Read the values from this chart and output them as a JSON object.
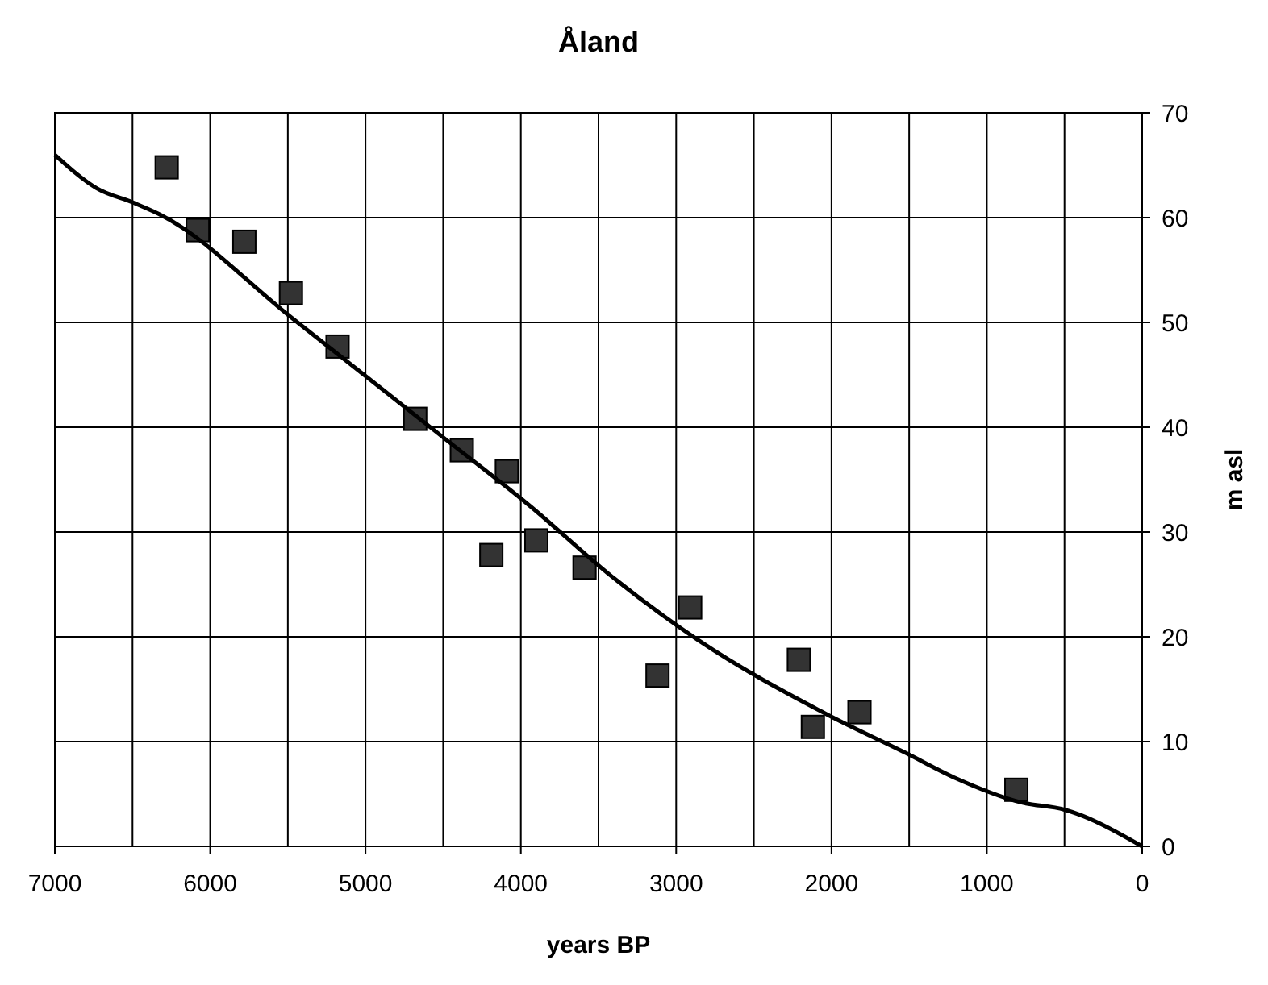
{
  "chart_data": {
    "type": "scatter",
    "title": "Åland",
    "xlabel": "years BP",
    "ylabel": "m asl",
    "xlim": [
      7000,
      0
    ],
    "ylim": [
      0,
      70
    ],
    "xticks": [
      7000,
      6000,
      5000,
      4000,
      3000,
      2000,
      1000,
      0
    ],
    "yticks": [
      0,
      10,
      20,
      30,
      40,
      50,
      60,
      70
    ],
    "grid": true,
    "series": [
      {
        "marker": "square",
        "color": "#333333",
        "x": [
          6280,
          6080,
          5780,
          5480,
          5180,
          4680,
          4380,
          4090,
          3900,
          4190,
          3590,
          3120,
          2910,
          2210,
          2120,
          1820,
          810
        ],
        "values": [
          64.8,
          58.8,
          57.7,
          52.8,
          47.7,
          40.8,
          37.8,
          35.8,
          29.2,
          27.8,
          26.6,
          16.3,
          22.8,
          17.8,
          11.4,
          12.8,
          5.4
        ]
      },
      {
        "type": "line",
        "marker": "none",
        "line_style": "solid",
        "color": "#000000",
        "x": [
          7000,
          6730,
          6490,
          6310,
          5480,
          4480,
          3950,
          3410,
          2860,
          2030,
          1520,
          1200,
          780,
          500,
          0
        ],
        "values": [
          66,
          62.8,
          61.4,
          60.2,
          50.5,
          38.8,
          32.6,
          25.7,
          19.7,
          12.6,
          8.9,
          6.5,
          4.2,
          3.5,
          0
        ]
      }
    ]
  }
}
